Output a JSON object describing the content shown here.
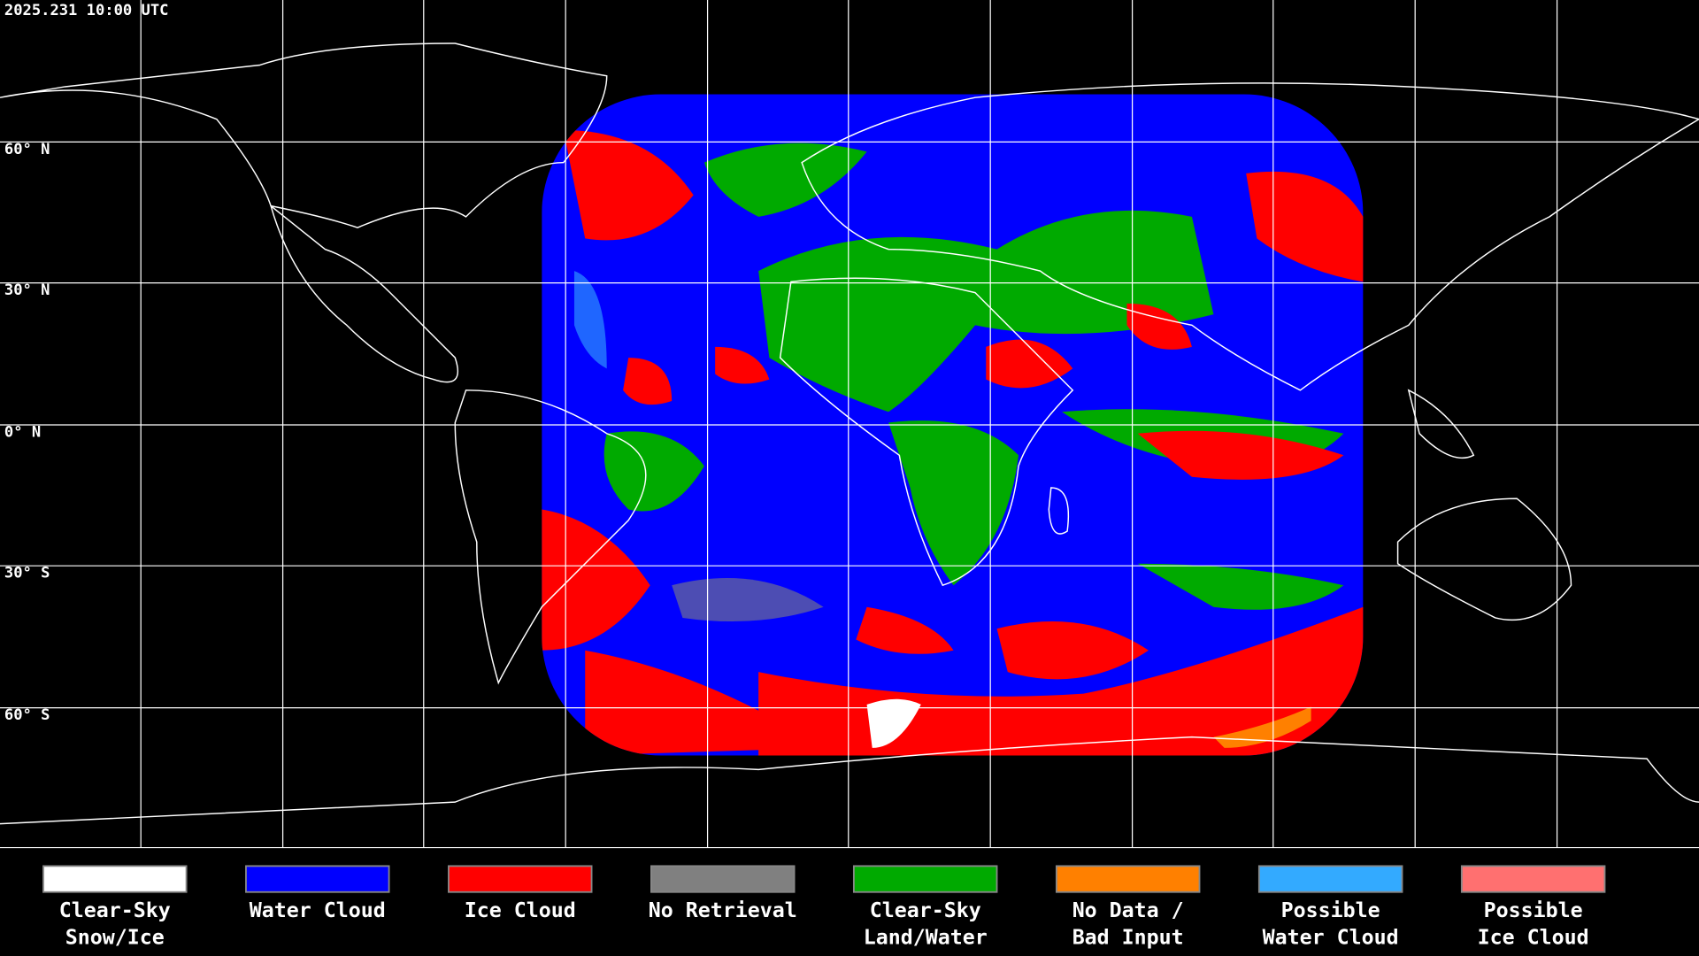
{
  "timestamp": "2025.231 10:00 UTC",
  "latitude_labels": [
    "60° N",
    "30° N",
    "0° N",
    "30° S",
    "60° S"
  ],
  "legend": [
    {
      "label": [
        "Clear-Sky",
        "Snow/Ice"
      ],
      "color": "#ffffff"
    },
    {
      "label": [
        "Water Cloud"
      ],
      "color": "#0000ff"
    },
    {
      "label": [
        "Ice Cloud"
      ],
      "color": "#ff0000"
    },
    {
      "label": [
        "No Retrieval"
      ],
      "color": "#808080"
    },
    {
      "label": [
        "Clear-Sky",
        "Land/Water"
      ],
      "color": "#00aa00"
    },
    {
      "label": [
        "No Data /",
        "Bad Input"
      ],
      "color": "#ff8000"
    },
    {
      "label": [
        "Possible",
        "Water Cloud"
      ],
      "color": "#33aaff"
    },
    {
      "label": [
        "Possible",
        "Ice Cloud"
      ],
      "color": "#ff7070"
    }
  ]
}
